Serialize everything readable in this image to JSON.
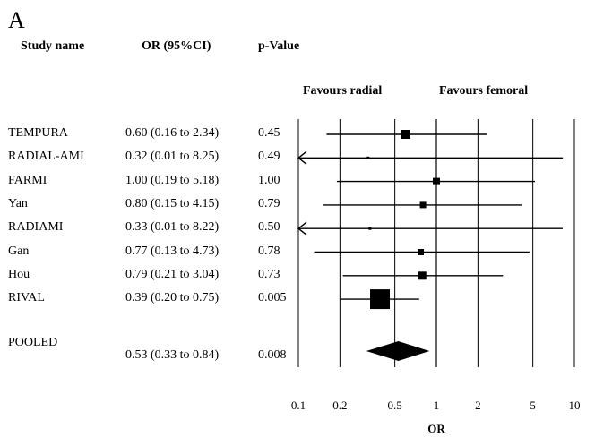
{
  "figure": {
    "panel_label": "A",
    "headers": {
      "study": "Study name",
      "or_ci": "OR (95%CI)",
      "pvalue": "p-Value"
    },
    "favours_left": "Favours radial",
    "favours_right": "Favours femoral",
    "xlabel": "OR"
  },
  "chart_data": {
    "type": "forest",
    "xscale": "log",
    "xlim": [
      0.1,
      10
    ],
    "xticks": [
      "0.1",
      "0.2",
      "0.5",
      "1",
      "2",
      "5",
      "10"
    ],
    "xtick_values": [
      0.1,
      0.2,
      0.5,
      1,
      2,
      5,
      10
    ],
    "reference_line": 1,
    "studies": [
      {
        "name": "TEMPURA",
        "or_ci": "0.60 (0.16 to 2.34)",
        "p": "0.45",
        "or": 0.6,
        "lo": 0.16,
        "hi": 2.34,
        "weight": 10
      },
      {
        "name": "RADIAL-AMI",
        "or_ci": "0.32 (0.01 to 8.25)",
        "p": "0.49",
        "or": 0.32,
        "lo": 0.01,
        "hi": 8.25,
        "weight": 3
      },
      {
        "name": "FARMI",
        "or_ci": "1.00 (0.19 to 5.18)",
        "p": "1.00",
        "or": 1.0,
        "lo": 0.19,
        "hi": 5.18,
        "weight": 8
      },
      {
        "name": "Yan",
        "or_ci": "0.80 (0.15 to 4.15)",
        "p": "0.79",
        "or": 0.8,
        "lo": 0.15,
        "hi": 4.15,
        "weight": 7
      },
      {
        "name": "RADIAMI",
        "or_ci": "0.33 (0.01 to 8.22)",
        "p": "0.50",
        "or": 0.33,
        "lo": 0.01,
        "hi": 8.22,
        "weight": 3
      },
      {
        "name": "Gan",
        "or_ci": "0.77 (0.13 to 4.73)",
        "p": "0.78",
        "or": 0.77,
        "lo": 0.13,
        "hi": 4.73,
        "weight": 7
      },
      {
        "name": "Hou",
        "or_ci": "0.79  (0.21 to 3.04)",
        "p": "0.73",
        "or": 0.79,
        "lo": 0.21,
        "hi": 3.04,
        "weight": 9
      },
      {
        "name": "RIVAL",
        "or_ci": "0.39 (0.20 to 0.75)",
        "p": "0.005",
        "or": 0.39,
        "lo": 0.2,
        "hi": 0.75,
        "weight": 22
      }
    ],
    "pooled": {
      "name": "POOLED",
      "or_ci": "0.53 (0.33 to 0.84)",
      "p": "0.008",
      "or": 0.53,
      "lo": 0.33,
      "hi": 0.84
    }
  }
}
